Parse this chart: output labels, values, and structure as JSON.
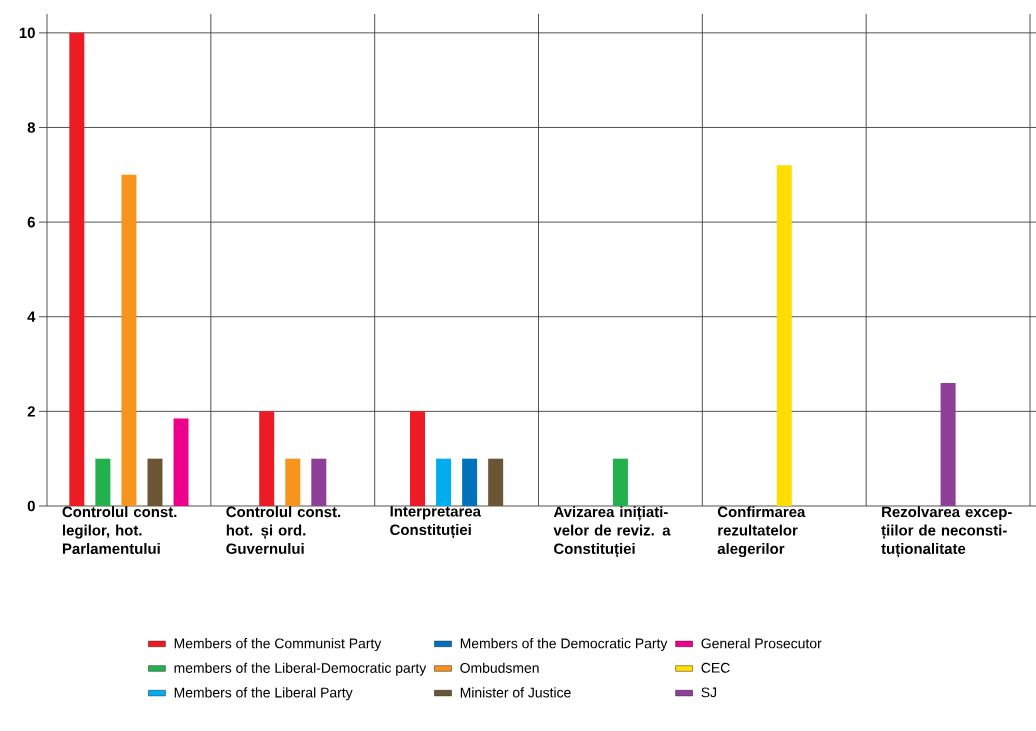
{
  "chart_data": {
    "type": "bar",
    "categories": [
      "Controlul const. legilor, hot. Parlamentului",
      "Controlul const. hot. și ord. Guvernului",
      "Interpretarea Constituției",
      "Avizarea inițiati-velor de reviz. a Constituției",
      "Confirmarea rezultatelor alegerilor",
      "Rezolvarea excep-țiilor de neconsti-tuționalitate"
    ],
    "series": [
      {
        "name": "Members of the Communist Party",
        "color": "#ed1c24",
        "values": [
          10,
          2,
          2,
          null,
          null,
          null
        ]
      },
      {
        "name": "members of the Liberal-Democratic party",
        "color": "#22b14c",
        "values": [
          1,
          null,
          null,
          1,
          null,
          null
        ]
      },
      {
        "name": "Members of the Liberal Party",
        "color": "#00aeef",
        "values": [
          null,
          null,
          1,
          null,
          null,
          null
        ]
      },
      {
        "name": "Members of the Democratic Party",
        "color": "#0072bc",
        "values": [
          null,
          null,
          1,
          null,
          null,
          null
        ]
      },
      {
        "name": "Ombudsmen",
        "color": "#f7941d",
        "values": [
          7,
          1,
          null,
          null,
          null,
          null
        ]
      },
      {
        "name": "Minister of Justice",
        "color": "#6b5535",
        "values": [
          1,
          null,
          1,
          null,
          null,
          null
        ]
      },
      {
        "name": "General Prosecutor",
        "color": "#ec008c",
        "values": [
          1.85,
          null,
          null,
          null,
          null,
          null
        ]
      },
      {
        "name": "CEC",
        "color": "#ffdd00",
        "values": [
          null,
          null,
          null,
          null,
          7.2,
          null
        ]
      },
      {
        "name": "SJ",
        "color": "#8e3f97",
        "values": [
          null,
          1,
          null,
          null,
          null,
          2.6
        ]
      }
    ],
    "ylim": [
      0,
      10.4
    ],
    "yticks": [
      0,
      2,
      4,
      6,
      8,
      10
    ],
    "grid": true,
    "legend": "bottom"
  }
}
